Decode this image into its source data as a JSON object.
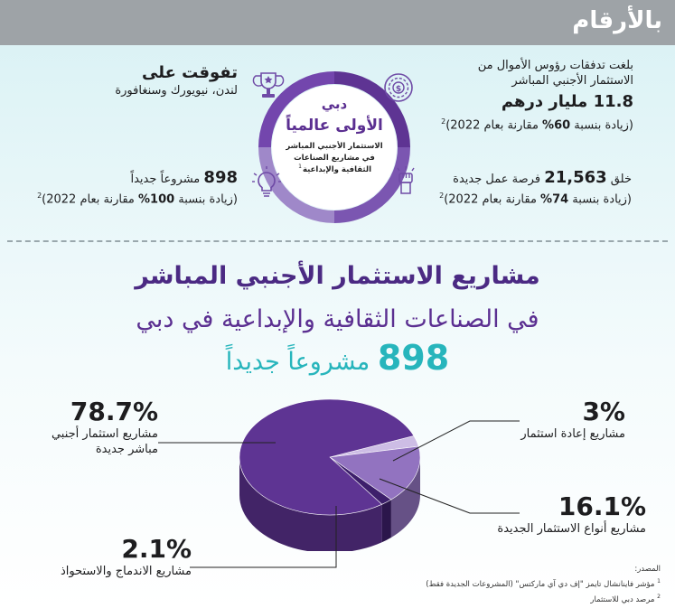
{
  "header": {
    "title": "بالأرقام"
  },
  "center": {
    "line1": "دبي",
    "line2": "الأولى عالمياً",
    "desc1": "الاستثمار الأجنبي المباشر",
    "desc2": "في مشاريع الصناعات",
    "desc3": "الثقافية والإبداعية",
    "desc_sup": "1"
  },
  "stats": {
    "capital": {
      "line1": "بلغت تدفقات رؤوس الأموال من",
      "line2": "الاستثمار الأجنبي المباشر",
      "value": "11.8 مليار درهم",
      "growth_pre": "(زيادة بنسبة ",
      "growth_val": "60%",
      "growth_post": " مقارنة بعام 2022)",
      "sup": "2"
    },
    "outperform": {
      "title": "تفوقت على",
      "cities": "لندن، نيويورك وسنغافورة"
    },
    "jobs": {
      "pre": "خلق ",
      "value": "21,563",
      "post": " فرصة عمل جديدة",
      "growth_pre": "(زيادة بنسبة ",
      "growth_val": "74%",
      "growth_post": " مقارنة بعام 2022)",
      "sup": "2"
    },
    "projects": {
      "value": "898",
      "post": " مشروعاً جديداً",
      "growth_pre": "(زيادة بنسبة ",
      "growth_val": "100%",
      "growth_post": " مقارنة بعام 2022)",
      "sup": "2"
    }
  },
  "headings": {
    "line1": "مشاريع الاستثمار الأجنبي المباشر",
    "line2": "في الصناعات الثقافية والإبداعية في دبي",
    "count": "898",
    "count_label": "مشروعاً جديداً"
  },
  "chart_data": {
    "type": "pie",
    "title": "",
    "slices": [
      {
        "label": "مشاريع استثمار أجنبي مباشر جديدة",
        "label_line1": "مشاريع استثمار أجنبي",
        "label_line2": "مباشر جديدة",
        "value": 78.7,
        "display": "78.7%",
        "color": "#5e3493"
      },
      {
        "label": "مشاريع إعادة استثمار",
        "value": 3,
        "display": "3%",
        "color": "#cdbde5"
      },
      {
        "label": "مشاريع أنواع الاستثمار الجديدة",
        "value": 16.1,
        "display": "16.1%",
        "color": "#9273c0"
      },
      {
        "label": "مشاريع الاندماج والاستحواذ",
        "value": 2.1,
        "display": "2.1%",
        "color": "#3d1f6b"
      }
    ]
  },
  "sources": {
    "title": "المصدر:",
    "s1_sup": "1",
    "s1": "مؤشر فاينانشال تايمز \"إف دي آي ماركتس\" (المشروعات الجديدة فقط)",
    "s2_sup": "2",
    "s2": "مرصد دبي للاستثمار"
  },
  "colors": {
    "purple": "#5b2f91",
    "teal": "#27b5bc",
    "bar": "#9ea3a7"
  },
  "icons": [
    "money-spiral-icon",
    "trophy-icon",
    "lightbulb-icon",
    "raised-fist-icon"
  ]
}
